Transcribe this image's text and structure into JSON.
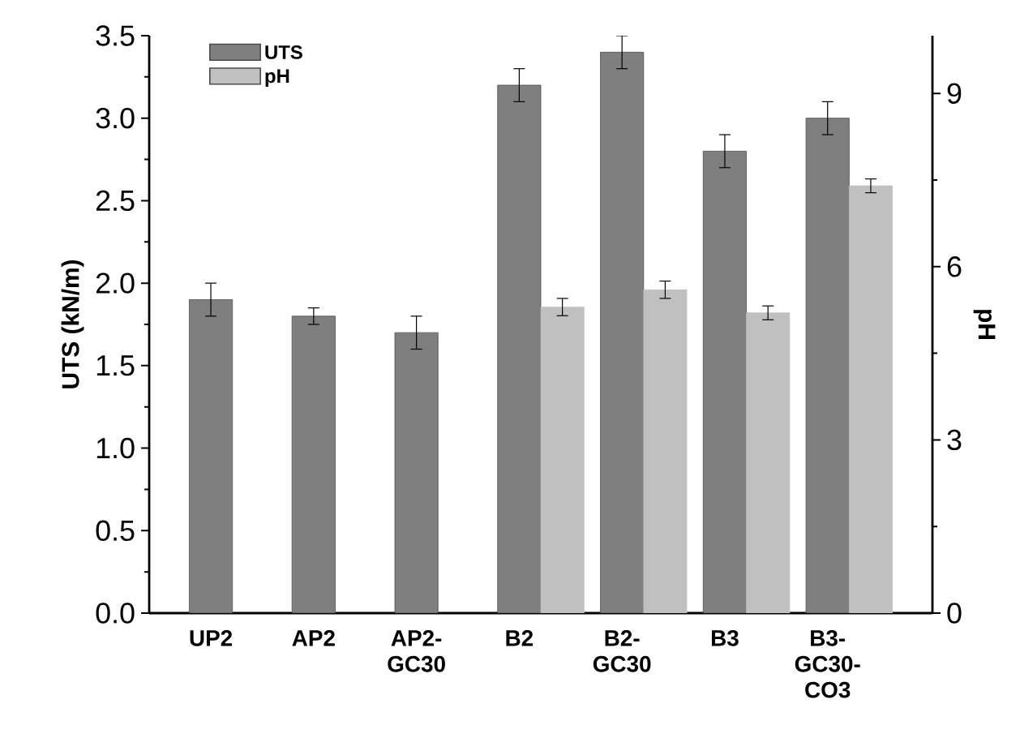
{
  "chart_data": {
    "type": "bar",
    "ylabel": "UTS (kN/m)",
    "y2label": "pH",
    "categories": [
      "UP2",
      "AP2",
      "AP2-GC30",
      "B2",
      "B2-GC30",
      "B3",
      "B3-GC30-CO3"
    ],
    "series": [
      {
        "name": "UTS",
        "color": "#7f7f7f",
        "values": [
          1.9,
          1.8,
          1.7,
          3.2,
          3.4,
          2.8,
          3.0
        ],
        "errors": [
          0.1,
          0.05,
          0.1,
          0.1,
          0.1,
          0.1,
          0.1
        ]
      },
      {
        "name": "pH",
        "color": "#c0c0c0",
        "axis": "y2",
        "values": [
          null,
          null,
          null,
          5.3,
          5.6,
          5.2,
          7.4
        ],
        "errors": [
          null,
          null,
          null,
          0.15,
          0.15,
          0.12,
          0.12
        ]
      }
    ],
    "ylim": [
      0,
      3.5
    ],
    "yticks": [
      {
        "value": 0,
        "label": "0.0"
      },
      0.5,
      {
        "value": 1,
        "label": "1.0"
      },
      1.5,
      {
        "value": 2,
        "label": "2.0"
      },
      2.5,
      {
        "value": 3,
        "label": "3.0"
      },
      3.5
    ],
    "y2lim": [
      0,
      10
    ],
    "y2ticks": [
      0,
      3,
      6,
      9
    ],
    "legend": "top left"
  }
}
